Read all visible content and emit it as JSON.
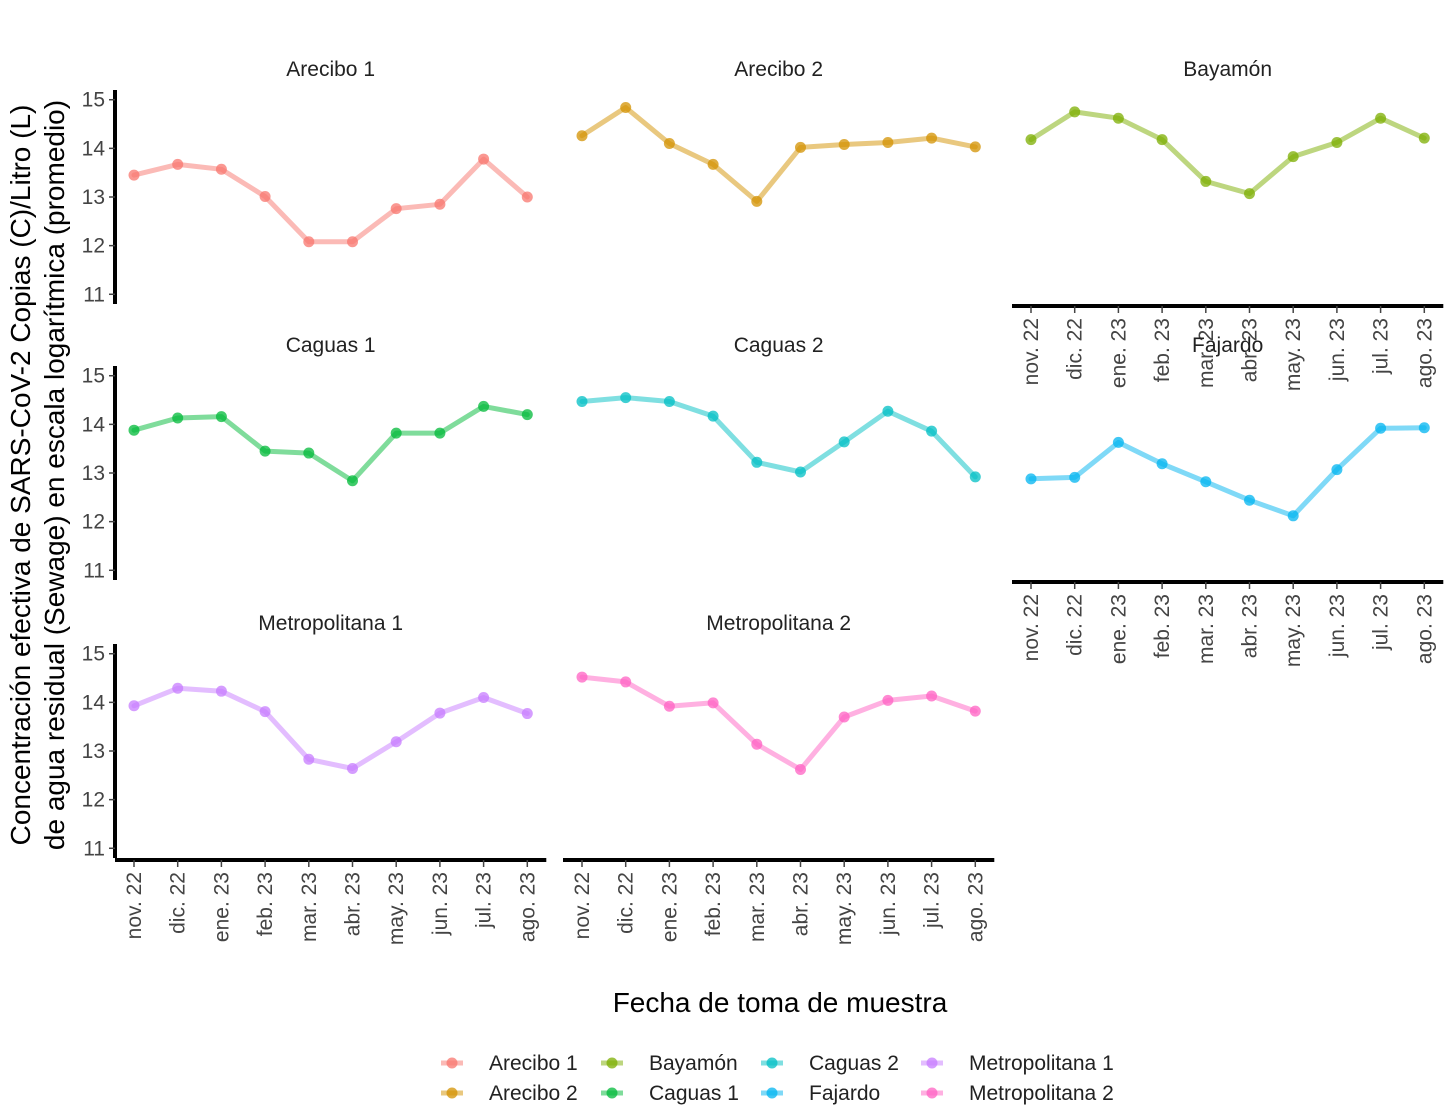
{
  "chart_data": {
    "type": "line",
    "facets": true,
    "x": [
      "nov. 22",
      "dic. 22",
      "ene. 23",
      "feb. 23",
      "mar. 23",
      "abr. 23",
      "may. 23",
      "jun. 23",
      "jul. 23",
      "ago. 23"
    ],
    "xlabel": "Fecha de toma de muestra",
    "ylabel_lines": [
      "Concentración efectiva de SARS-CoV-2 Copias (C)/Litro (L)",
      "de agua residual (Sewage) en escala logarítmica (promedio)"
    ],
    "ylim": [
      10.8,
      15.2
    ],
    "yticks": [
      11,
      12,
      13,
      14,
      15
    ],
    "grid": false,
    "legend_position": "bottom",
    "series": [
      {
        "name": "Arecibo 1",
        "color": "#F8766D",
        "values": [
          13.45,
          13.67,
          13.57,
          13.01,
          12.08,
          12.08,
          12.76,
          12.85,
          13.78,
          13.0
        ]
      },
      {
        "name": "Arecibo 2",
        "color": "#D39200",
        "values": [
          14.26,
          14.84,
          14.1,
          13.67,
          12.91,
          14.02,
          14.08,
          14.12,
          14.21,
          14.03
        ]
      },
      {
        "name": "Bayamón",
        "color": "#7CAE00",
        "values": [
          14.18,
          14.75,
          14.62,
          14.18,
          13.32,
          13.07,
          13.83,
          14.12,
          14.62,
          14.21
        ]
      },
      {
        "name": "Caguas 1",
        "color": "#00BA38",
        "values": [
          13.88,
          14.13,
          14.16,
          13.45,
          13.41,
          12.84,
          13.82,
          13.82,
          14.37,
          14.2
        ]
      },
      {
        "name": "Caguas 2",
        "color": "#00BFC4",
        "values": [
          14.47,
          14.55,
          14.47,
          14.17,
          13.22,
          13.02,
          13.64,
          14.27,
          13.86,
          12.92
        ]
      },
      {
        "name": "Fajardo",
        "color": "#00B4F0",
        "values": [
          12.88,
          12.91,
          13.63,
          13.19,
          12.82,
          12.44,
          12.12,
          13.07,
          13.92,
          13.93
        ]
      },
      {
        "name": "Metropolitana 1",
        "color": "#C77CFF",
        "values": [
          13.93,
          14.29,
          14.23,
          13.81,
          12.83,
          12.64,
          13.19,
          13.78,
          14.1,
          13.77
        ]
      },
      {
        "name": "Metropolitana 2",
        "color": "#FF61C3",
        "values": [
          14.52,
          14.42,
          13.92,
          13.99,
          13.14,
          12.62,
          13.7,
          14.04,
          14.13,
          13.82
        ]
      }
    ]
  }
}
